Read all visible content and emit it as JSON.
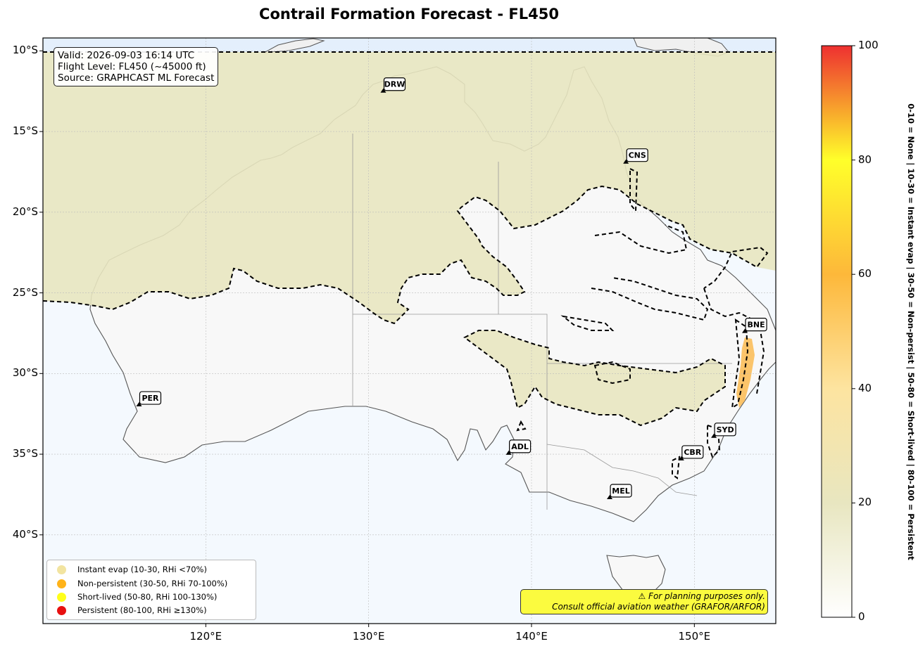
{
  "title": "Contrail Formation Forecast - FL450",
  "info": {
    "valid": "Valid: 2026-09-03 16:14 UTC",
    "flight_level": "Flight Level: FL450 (~45000 ft)",
    "source": "Source: GRAPHCAST ML Forecast"
  },
  "map": {
    "lon_range": [
      110,
      155
    ],
    "lat_range": [
      -45.5,
      -9.2
    ],
    "lon_ticks": [
      {
        "value": 120,
        "label": "120°E"
      },
      {
        "value": 130,
        "label": "130°E"
      },
      {
        "value": 140,
        "label": "140°E"
      },
      {
        "value": 150,
        "label": "150°E"
      }
    ],
    "lat_ticks": [
      {
        "value": -10,
        "label": "10°S"
      },
      {
        "value": -15,
        "label": "15°S"
      },
      {
        "value": -20,
        "label": "20°S"
      },
      {
        "value": -25,
        "label": "25°S"
      },
      {
        "value": -30,
        "label": "30°S"
      },
      {
        "value": -35,
        "label": "35°S"
      },
      {
        "value": -40,
        "label": "40°S"
      }
    ],
    "airports": [
      {
        "code": "DRW",
        "lon": 130.9,
        "lat": -12.5
      },
      {
        "code": "CNS",
        "lon": 145.8,
        "lat": -16.9
      },
      {
        "code": "BNE",
        "lon": 153.1,
        "lat": -27.4
      },
      {
        "code": "PER",
        "lon": 115.9,
        "lat": -31.95
      },
      {
        "code": "SYD",
        "lon": 151.2,
        "lat": -33.9
      },
      {
        "code": "ADL",
        "lon": 138.6,
        "lat": -34.95
      },
      {
        "code": "CBR",
        "lon": 149.2,
        "lat": -35.3
      },
      {
        "code": "MEL",
        "lon": 144.8,
        "lat": -37.7
      }
    ],
    "colors": {
      "ocean": "#f4f9fe",
      "land_none": "#f8f8f8",
      "instant_evap_field": "#e8e6c0",
      "contour": "#000000",
      "coast": "#555555"
    }
  },
  "legend": [
    {
      "label": "Instant evap (10-30, RHi <70%)",
      "color": "#f2e4a0"
    },
    {
      "label": "Non-persistent (30-50, RHi 70-100%)",
      "color": "#ffb319"
    },
    {
      "label": "Short-lived (50-80, RHi 100-130%)",
      "color": "#ffff1a"
    },
    {
      "label": "Persistent (80-100, RHi ≥130%)",
      "color": "#e81010"
    }
  ],
  "warning": {
    "line1": "⚠ For planning purposes only.",
    "line2": "Consult official aviation weather (GRAFOR/ARFOR)"
  },
  "colorbar": {
    "range": [
      0,
      100
    ],
    "ticks": [
      0,
      20,
      40,
      60,
      80,
      100
    ],
    "stops": [
      {
        "value": 0,
        "color": "#ffffff"
      },
      {
        "value": 20,
        "color": "#e8e6c0"
      },
      {
        "value": 40,
        "color": "#fde4a0"
      },
      {
        "value": 60,
        "color": "#fdb83a"
      },
      {
        "value": 80,
        "color": "#ffff2a"
      },
      {
        "value": 100,
        "color": "#ee3030"
      }
    ],
    "side_label": "0-10 = None  |  10-30 = Instant evap  |  30-50 = Non-persist  |  50-80 = Short-lived  |  80-100 = Persistent"
  }
}
